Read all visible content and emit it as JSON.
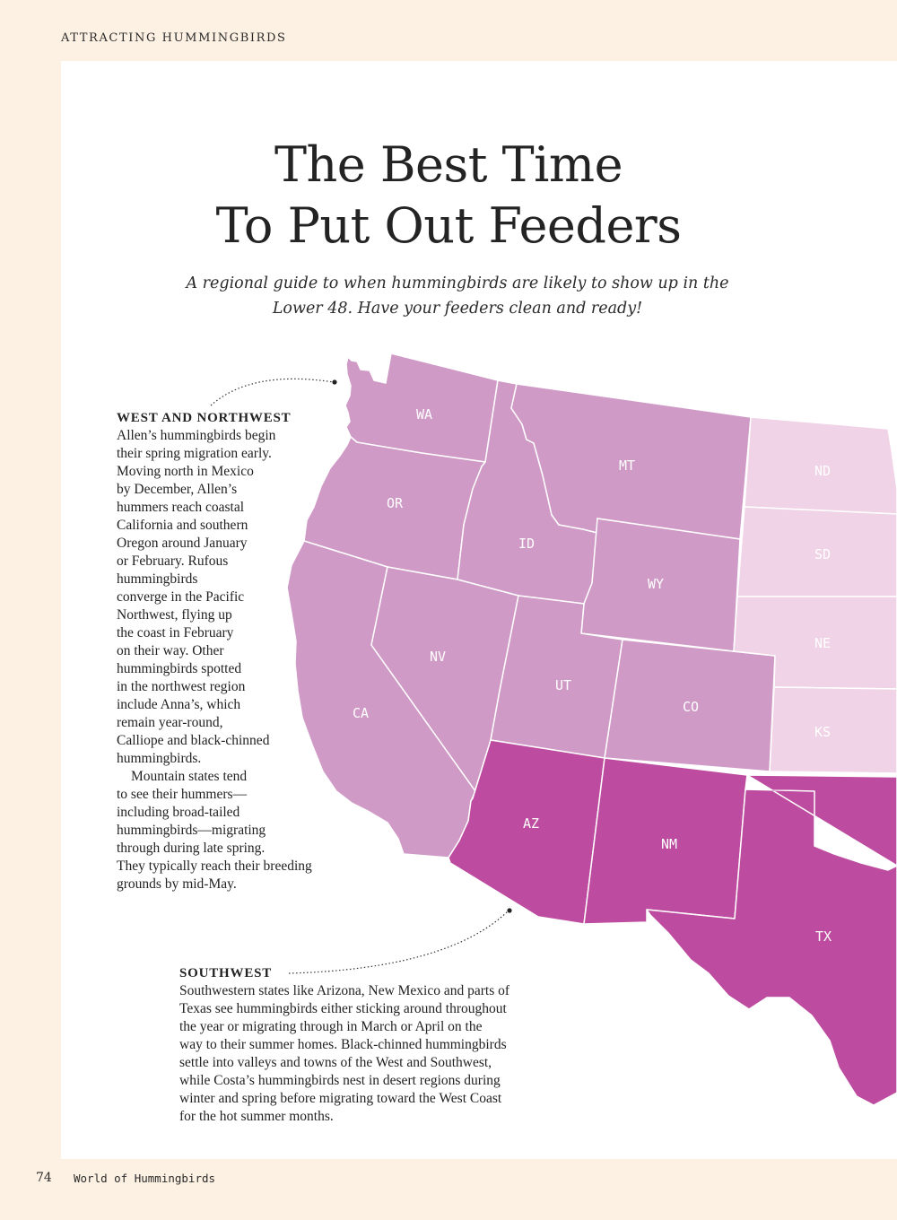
{
  "header": {
    "running_head": "ATTRACTING HUMMINGBIRDS"
  },
  "title": {
    "line1": "The Best Time",
    "line2": "To Put Out Feeders"
  },
  "subtitle": {
    "line1": "A regional guide to when hummingbirds are likely to show up in the",
    "line2": "Lower 48. Have your feeders clean and ready!"
  },
  "colors": {
    "page_background": "#fdf1e3",
    "panel": "#ffffff",
    "west_northwest": "#d09ac6",
    "southwest": "#bd4b9f",
    "plains": "#f0d3e6",
    "state_border": "#ffffff"
  },
  "map": {
    "states": [
      {
        "abbr": "WA",
        "region": "west_northwest"
      },
      {
        "abbr": "OR",
        "region": "west_northwest"
      },
      {
        "abbr": "CA",
        "region": "west_northwest"
      },
      {
        "abbr": "ID",
        "region": "west_northwest"
      },
      {
        "abbr": "NV",
        "region": "west_northwest"
      },
      {
        "abbr": "MT",
        "region": "west_northwest"
      },
      {
        "abbr": "WY",
        "region": "west_northwest"
      },
      {
        "abbr": "UT",
        "region": "west_northwest"
      },
      {
        "abbr": "CO",
        "region": "west_northwest"
      },
      {
        "abbr": "AZ",
        "region": "southwest"
      },
      {
        "abbr": "NM",
        "region": "southwest"
      },
      {
        "abbr": "TX",
        "region": "southwest"
      },
      {
        "abbr": "ND",
        "region": "plains"
      },
      {
        "abbr": "SD",
        "region": "plains"
      },
      {
        "abbr": "NE",
        "region": "plains"
      },
      {
        "abbr": "KS",
        "region": "plains"
      }
    ]
  },
  "west_northwest": {
    "heading": "WEST AND NORTHWEST",
    "lines": [
      "Allen’s hummingbirds begin",
      "their spring migration early.",
      "Moving north in Mexico",
      "by December, Allen’s",
      "hummers reach coastal",
      "California and southern",
      "Oregon around January",
      "or February. Rufous",
      "hummingbirds",
      "converge in the Pacific",
      "Northwest, flying up",
      "the coast in February",
      "on their way. Other",
      "hummingbirds spotted",
      "in the northwest region",
      "include Anna’s, which",
      "remain year-round,",
      "Calliope and black-chinned",
      "hummingbirds.",
      "Mountain states tend",
      "to see their hummers—",
      "including broad-tailed",
      "hummingbirds—migrating",
      "through during late spring.",
      "They typically reach their breeding",
      "grounds by mid-May."
    ]
  },
  "southwest": {
    "heading": "SOUTHWEST",
    "lines": [
      "Southwestern states like Arizona, New Mexico and parts of",
      "Texas see hummingbirds either sticking around throughout",
      "the year or migrating through in March or April on the",
      "way to their summer homes. Black-chinned hummingbirds",
      "settle into valleys and towns of the West and Southwest,",
      "while Costa’s hummingbirds nest in desert regions during",
      "winter and spring before migrating toward the West Coast",
      "for the hot summer months."
    ]
  },
  "footer": {
    "page_number": "74",
    "publication": "World of Hummingbirds"
  }
}
